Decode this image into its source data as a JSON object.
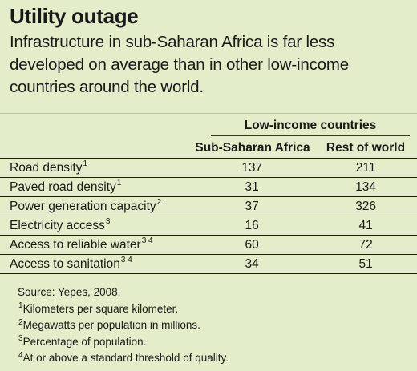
{
  "title": "Utility outage",
  "subtitle": "Infrastructure in sub-Saharan Africa is far less developed on average than in other low-income countries around the world.",
  "table": {
    "group_header": "Low-income countries",
    "columns": [
      "Sub-Saharan Africa",
      "Rest of world"
    ],
    "rows": [
      {
        "label": "Road density",
        "sup": "1",
        "ssa": "137",
        "rest": "211"
      },
      {
        "label": "Paved road density",
        "sup": "1",
        "ssa": "31",
        "rest": "134"
      },
      {
        "label": "Power generation capacity",
        "sup": "2",
        "ssa": "37",
        "rest": "326"
      },
      {
        "label": "Electricity access",
        "sup": "3",
        "ssa": "16",
        "rest": "41"
      },
      {
        "label": "Access to reliable water",
        "sup": "3 4",
        "ssa": "60",
        "rest": "72"
      },
      {
        "label": "Access to sanitation",
        "sup": "3 4",
        "ssa": "34",
        "rest": "51"
      }
    ]
  },
  "source": "Source: Yepes, 2008.",
  "footnotes": [
    {
      "mark": "1",
      "text": "Kilometers per square kilometer."
    },
    {
      "mark": "2",
      "text": "Megawatts per population in millions."
    },
    {
      "mark": "3",
      "text": "Percentage of population."
    },
    {
      "mark": "4",
      "text": "At or above a standard threshold of quality."
    }
  ]
}
